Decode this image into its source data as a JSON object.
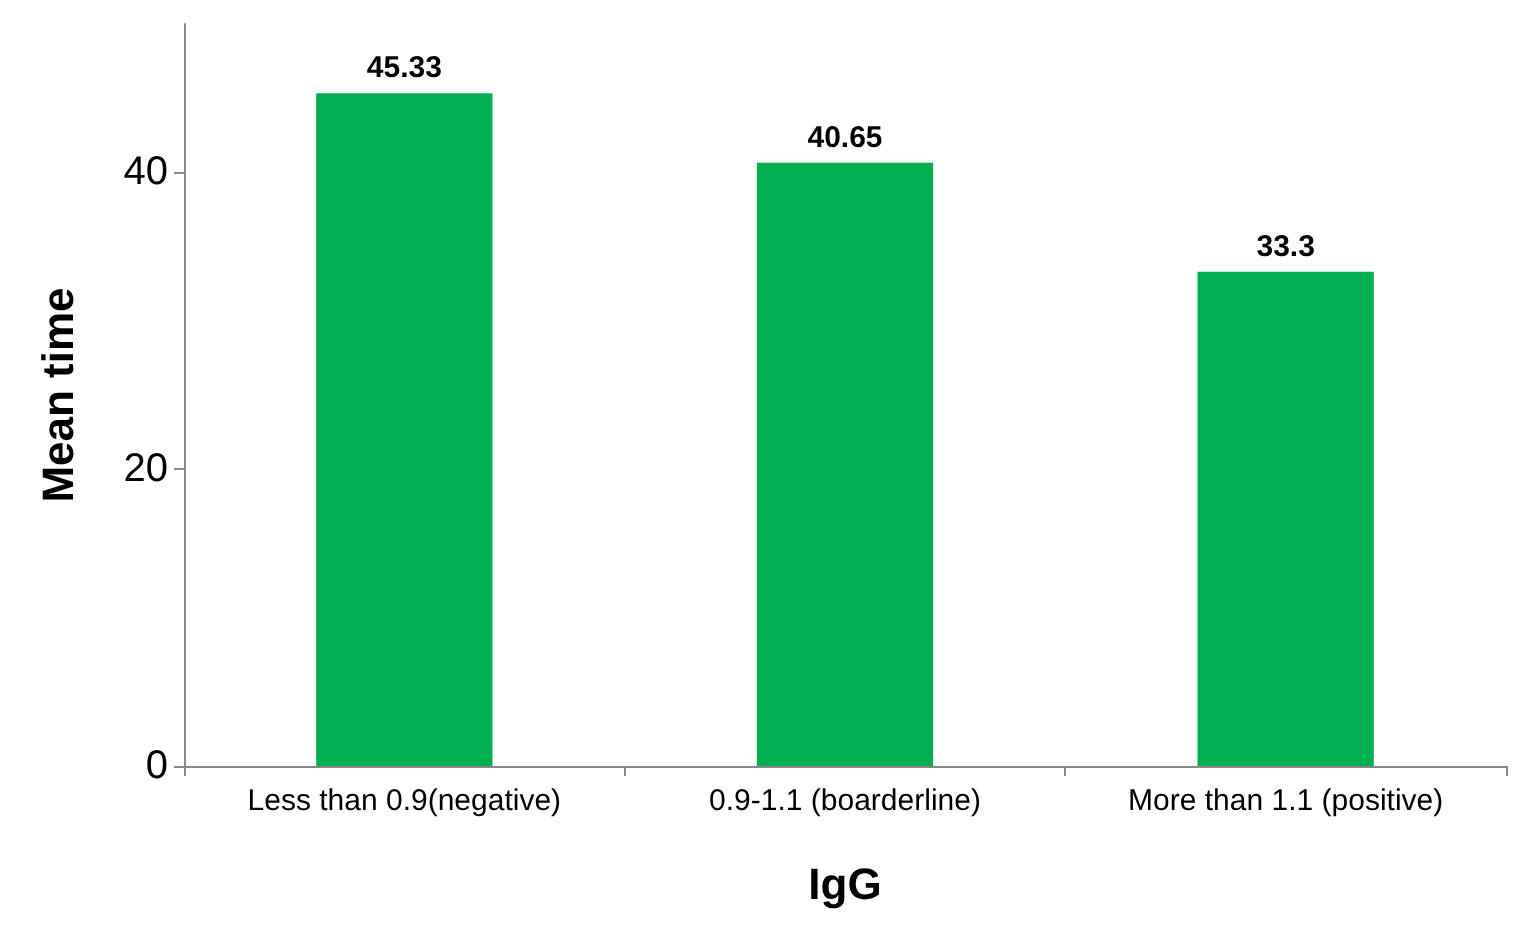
{
  "chart_data": {
    "type": "bar",
    "xlabel": "IgG",
    "ylabel": "Mean time",
    "categories": [
      "Less than 0.9(negative)",
      "0.9-1.1 (boarderline)",
      "More than 1.1 (positive)"
    ],
    "values": [
      45.33,
      40.65,
      33.3
    ],
    "color": "#00b050",
    "ylim": [
      0,
      50
    ],
    "yticks": [
      0,
      20,
      40
    ],
    "grid": false,
    "data_labels": true
  }
}
